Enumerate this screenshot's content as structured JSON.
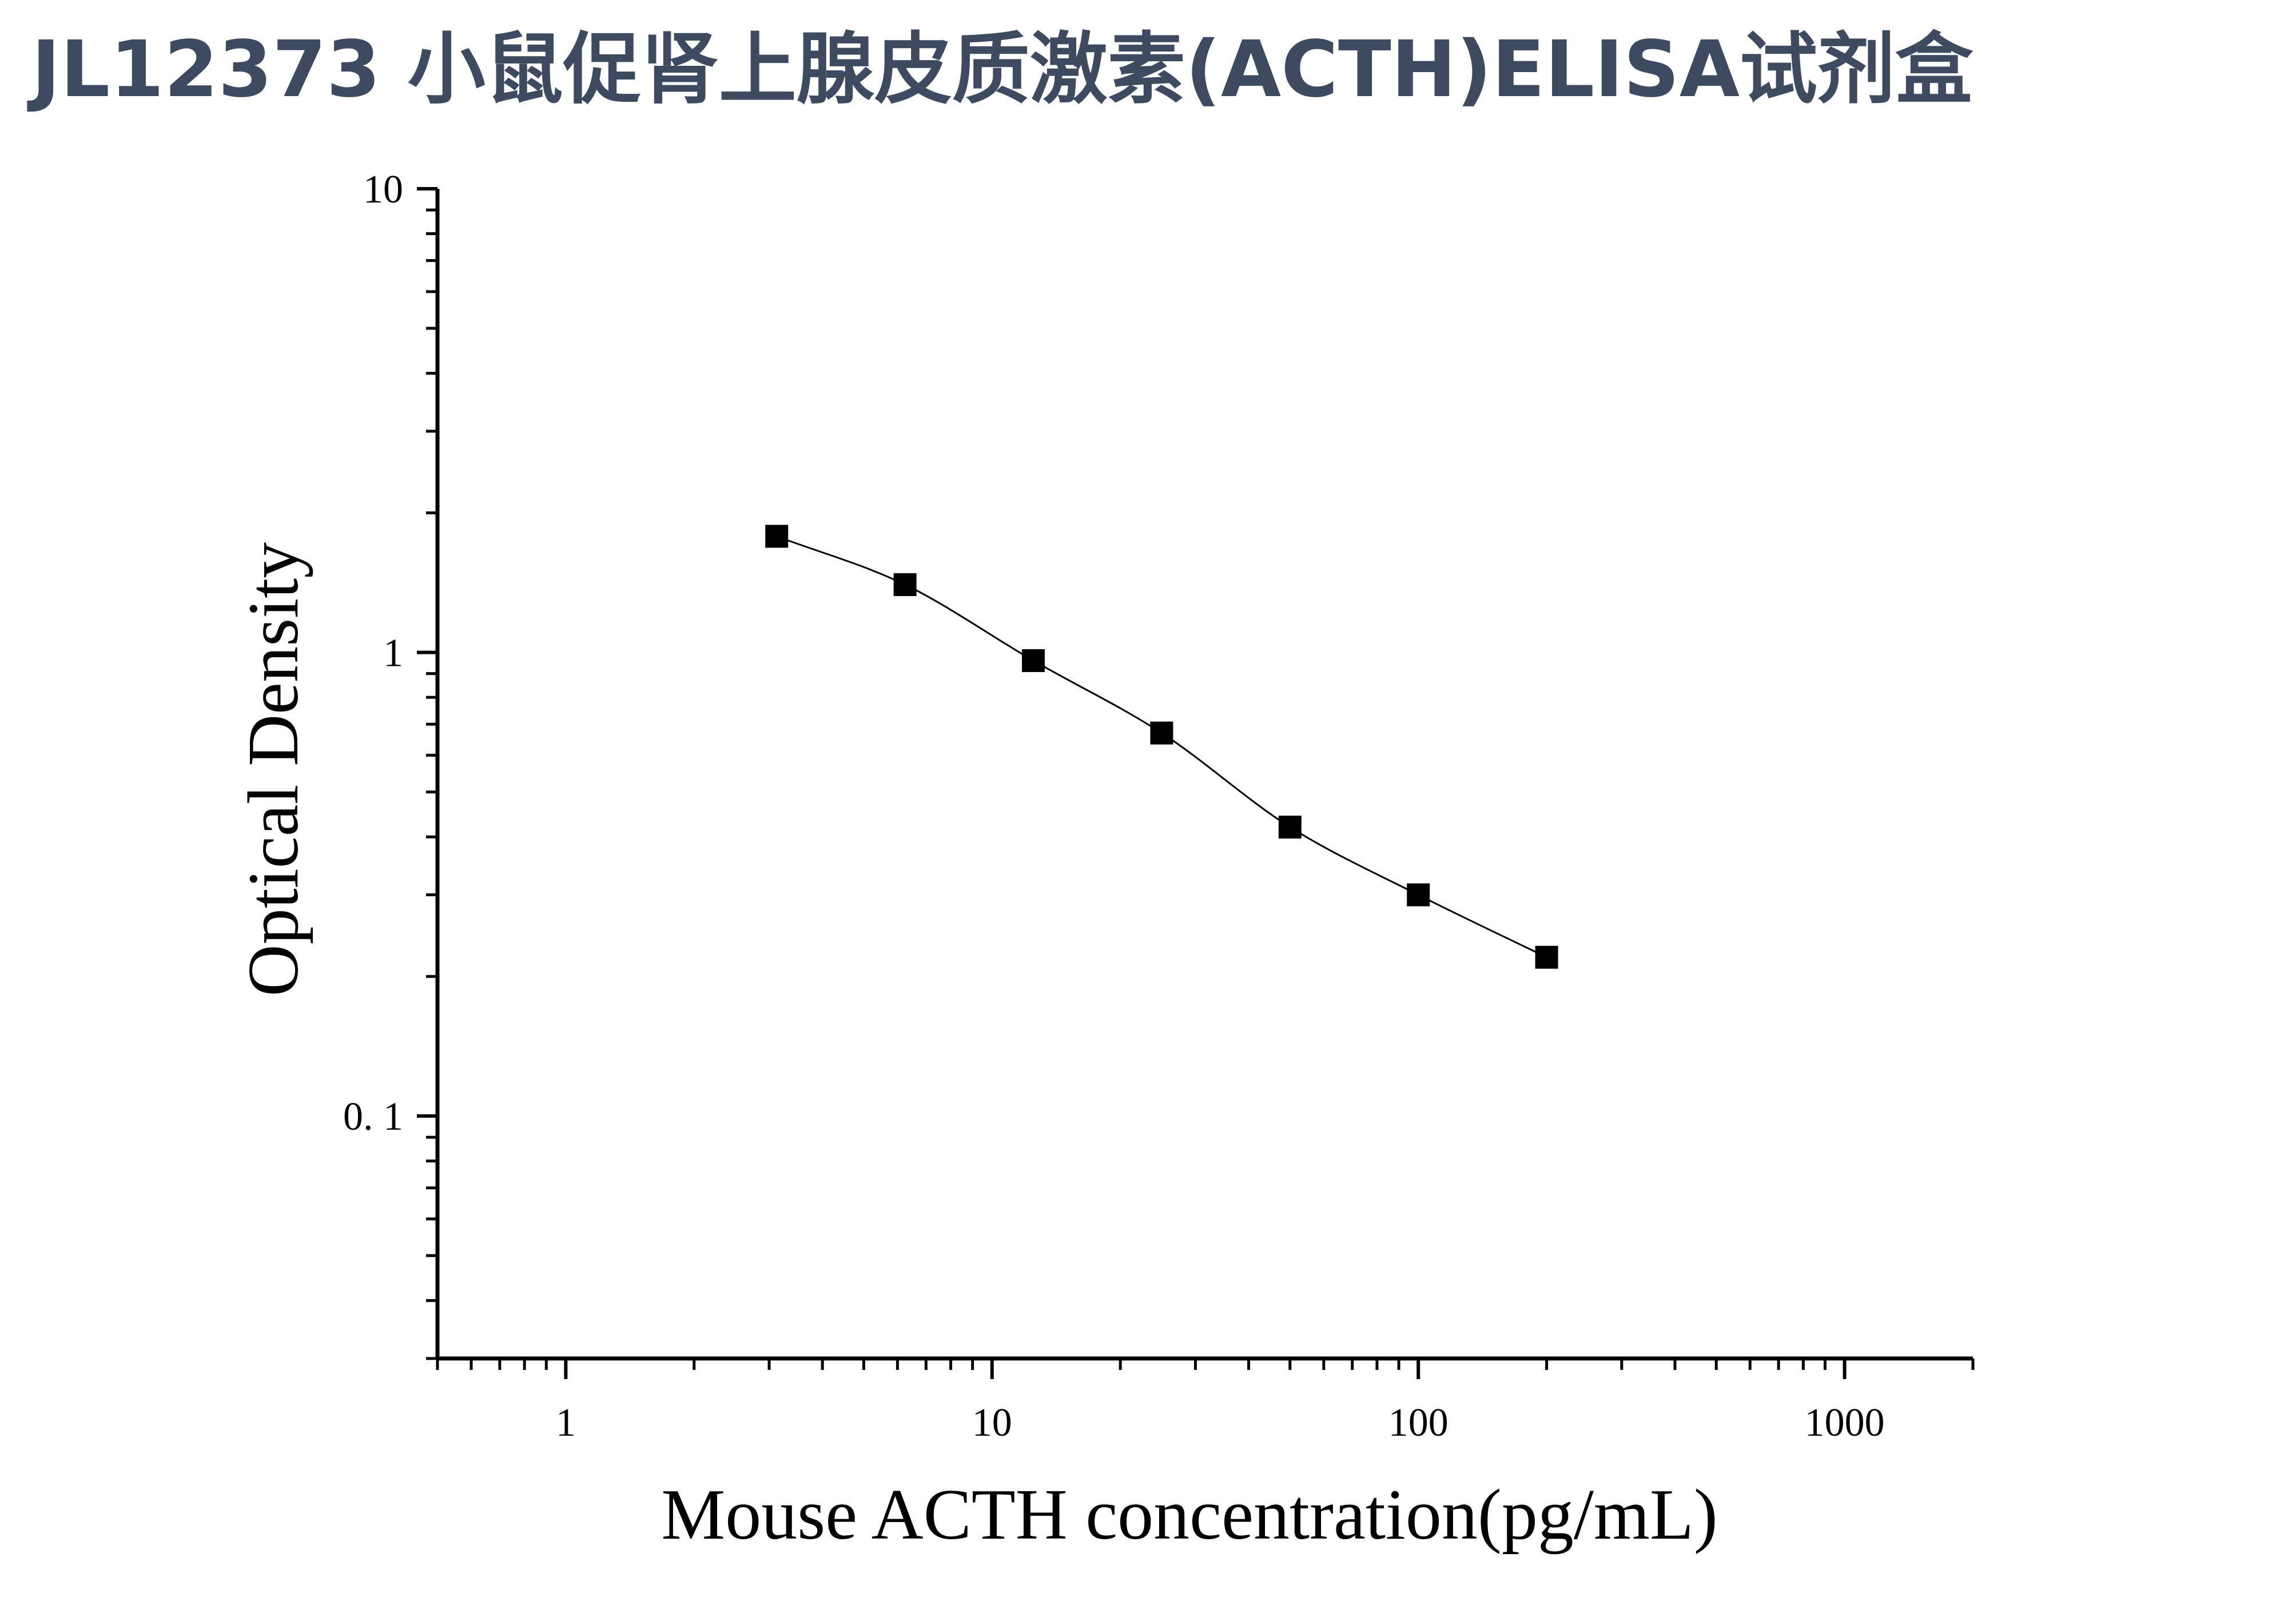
{
  "title": "JL12373 小鼠促肾上腺皮质激素(ACTH)ELISA试剂盒",
  "colors": {
    "title": "#3d4a5f",
    "axis": "#000000",
    "marker": "#000000",
    "curve": "#000000"
  },
  "chart_data": {
    "type": "scatter",
    "x_scale": "log",
    "y_scale": "log",
    "xlabel": "Mouse ACTH concentration(pg/mL)",
    "ylabel": "Optical Density",
    "xlim": [
      0.5,
      2000
    ],
    "ylim": [
      0.03,
      10
    ],
    "x_tick_labels": [
      "1",
      "10",
      "100",
      "1000"
    ],
    "y_tick_labels": [
      "0. 1",
      "1",
      "10"
    ],
    "grid": false,
    "marker": "square",
    "fit_curve": "4-parameter logistic",
    "series": [
      {
        "x": [
          3.125,
          6.25,
          12.5,
          25,
          50,
          100,
          200
        ],
        "y": [
          1.78,
          1.4,
          0.96,
          0.67,
          0.42,
          0.3,
          0.22
        ]
      }
    ]
  }
}
